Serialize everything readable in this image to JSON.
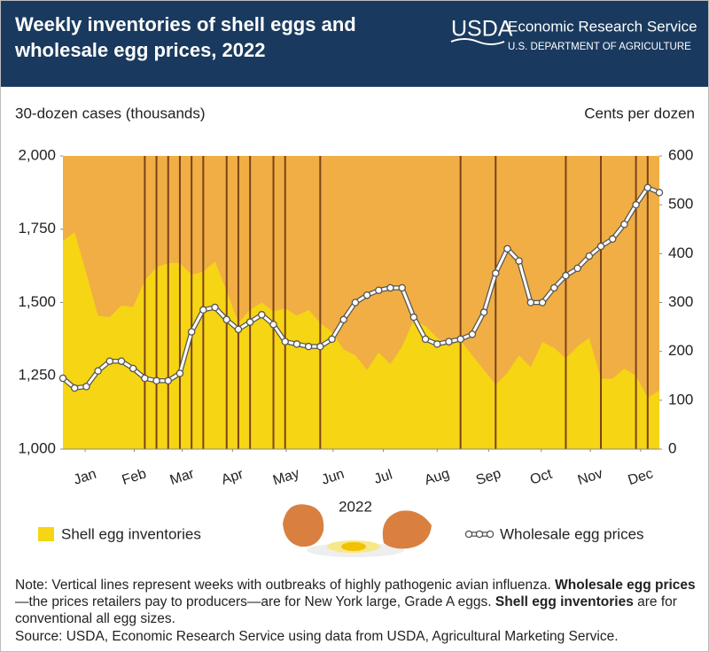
{
  "header": {
    "title_line1": "Weekly inventories of shell eggs and",
    "title_line2": "wholesale egg prices, 2022",
    "logo": "USDA",
    "agency": "Economic Research Service",
    "department": "U.S. DEPARTMENT OF AGRICULTURE"
  },
  "chart_data": {
    "type": "combo",
    "y_axis_label": "30-dozen cases (thousands)",
    "y2_axis_label": "Cents per dozen",
    "x_axis_label": "2022",
    "x": [
      1,
      2,
      3,
      4,
      5,
      6,
      7,
      8,
      9,
      10,
      11,
      12,
      13,
      14,
      15,
      16,
      17,
      18,
      19,
      20,
      21,
      22,
      23,
      24,
      25,
      26,
      27,
      28,
      29,
      30,
      31,
      32,
      33,
      34,
      35,
      36,
      37,
      38,
      39,
      40,
      41,
      42,
      43,
      44,
      45,
      46,
      47,
      48,
      49,
      50,
      51,
      52
    ],
    "xlim": [
      1,
      52
    ],
    "xticks": [
      {
        "value": 2.9,
        "label": "Jan"
      },
      {
        "value": 7.1,
        "label": "Feb"
      },
      {
        "value": 11.2,
        "label": "Mar"
      },
      {
        "value": 15.5,
        "label": "Apr"
      },
      {
        "value": 20.1,
        "label": "May"
      },
      {
        "value": 24.1,
        "label": "Jun"
      },
      {
        "value": 28.4,
        "label": "Jul"
      },
      {
        "value": 33,
        "label": "Aug"
      },
      {
        "value": 37.4,
        "label": "Sep"
      },
      {
        "value": 41.9,
        "label": "Oct"
      },
      {
        "value": 46.1,
        "label": "Nov"
      },
      {
        "value": 50.4,
        "label": "Dec"
      }
    ],
    "ylim": [
      1000,
      2000
    ],
    "yticks": [
      {
        "value": 1000,
        "label": "1,000"
      },
      {
        "value": 1250,
        "label": "1,250"
      },
      {
        "value": 1500,
        "label": "1,500"
      },
      {
        "value": 1750,
        "label": "1,750"
      },
      {
        "value": 2000,
        "label": "2,000"
      }
    ],
    "y2lim": [
      0,
      600
    ],
    "y2ticks": [
      0,
      100,
      200,
      300,
      400,
      500,
      600
    ],
    "background_color": "#f0ae45",
    "outbreak_color": "#7a4418",
    "outbreak_weeks": [
      8,
      9,
      10,
      11,
      12,
      13,
      15,
      16,
      17,
      19,
      20,
      23,
      35,
      38,
      44,
      47,
      50,
      51
    ],
    "series": [
      {
        "name": "Shell egg inventories",
        "kind": "area",
        "color": "#f5d514",
        "values": [
          1710,
          1740,
          1600,
          1455,
          1450,
          1490,
          1485,
          1575,
          1620,
          1635,
          1635,
          1595,
          1605,
          1640,
          1540,
          1430,
          1475,
          1500,
          1470,
          1480,
          1455,
          1475,
          1430,
          1400,
          1340,
          1320,
          1270,
          1330,
          1290,
          1350,
          1440,
          1420,
          1380,
          1350,
          1370,
          1320,
          1270,
          1220,
          1260,
          1320,
          1280,
          1365,
          1345,
          1310,
          1350,
          1380,
          1240,
          1240,
          1275,
          1250,
          1175,
          1200
        ]
      },
      {
        "name": "Wholesale egg prices",
        "kind": "line",
        "axis": "y2",
        "color": "#ffffff",
        "values": [
          145,
          125,
          128,
          160,
          180,
          180,
          165,
          145,
          140,
          140,
          155,
          240,
          285,
          290,
          265,
          245,
          260,
          275,
          255,
          220,
          215,
          210,
          210,
          225,
          265,
          300,
          315,
          325,
          330,
          330,
          270,
          225,
          215,
          220,
          225,
          235,
          280,
          360,
          410,
          385,
          300,
          300,
          330,
          355,
          370,
          395,
          415,
          430,
          460,
          500,
          535,
          525
        ]
      }
    ]
  },
  "note": {
    "part1": "Note: Vertical lines represent weeks with outbreaks of highly pathogenic avian influenza. ",
    "bold1": "Wholesale egg prices",
    "part2": "—the prices retailers pay to producers—are for New York large, Grade A eggs. ",
    "bold2": "Shell egg inventories",
    "part3": " are for conventional all egg sizes."
  },
  "source": "Source: USDA, Economic Research Service using data from USDA, Agricultural Marketing Service."
}
